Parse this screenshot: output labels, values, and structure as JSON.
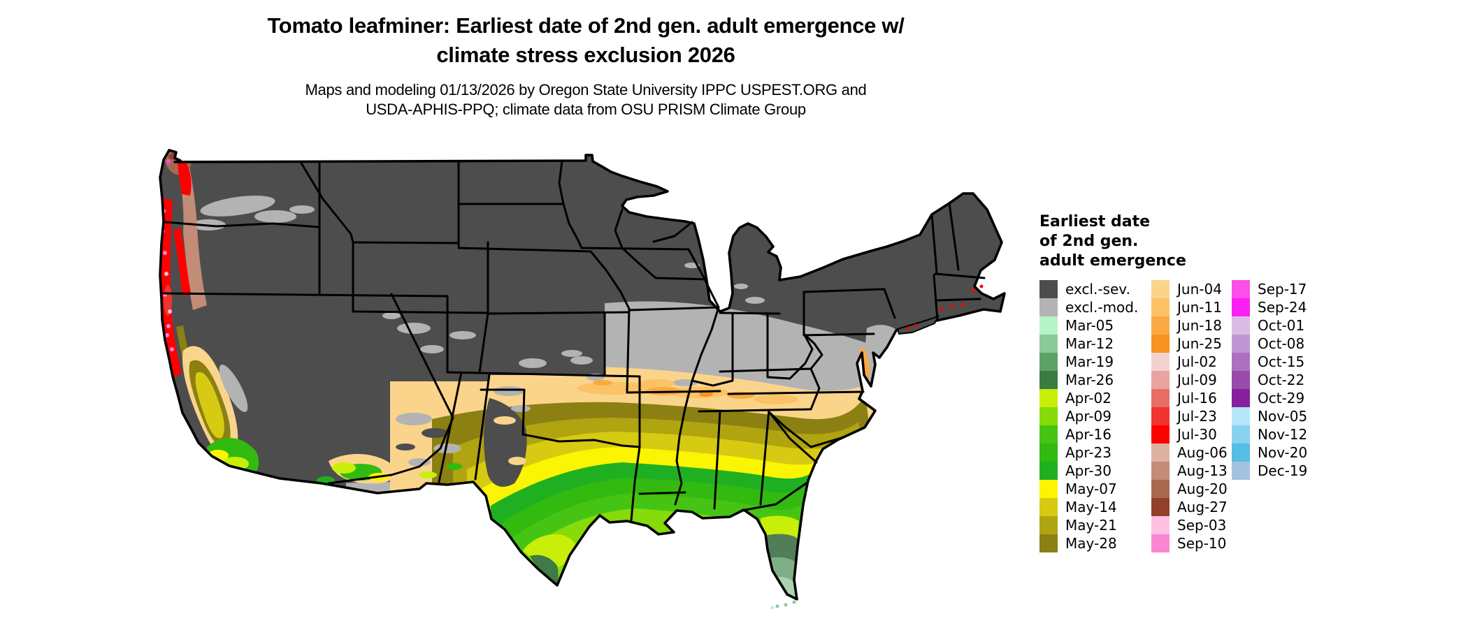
{
  "header": {
    "title_line1": "Tomato leafminer: Earliest date of 2nd gen. adult emergence w/",
    "title_line2": "climate stress exclusion 2026",
    "subtitle_line1": "Maps and modeling 01/13/2026 by Oregon State University IPPC USPEST.ORG and",
    "subtitle_line2": "USDA-APHIS-PPQ; climate data from OSU PRISM Climate Group"
  },
  "legend": {
    "title_lines": [
      "Earliest date",
      "of 2nd gen.",
      "adult emergence"
    ],
    "columns": [
      [
        {
          "label": "excl.-sev.",
          "color": "#4d4d4d"
        },
        {
          "label": "excl.-mod.",
          "color": "#b3b3b3"
        },
        {
          "label": "Mar-05",
          "color": "#b7f3c9"
        },
        {
          "label": "Mar-12",
          "color": "#8cc998"
        },
        {
          "label": "Mar-19",
          "color": "#5ba266"
        },
        {
          "label": "Mar-26",
          "color": "#3b7c42"
        },
        {
          "label": "Apr-02",
          "color": "#c8ef09"
        },
        {
          "label": "Apr-09",
          "color": "#86db09"
        },
        {
          "label": "Apr-16",
          "color": "#46c414"
        },
        {
          "label": "Apr-23",
          "color": "#32ba10"
        },
        {
          "label": "Apr-30",
          "color": "#1fb022"
        },
        {
          "label": "May-07",
          "color": "#fbf402"
        },
        {
          "label": "May-14",
          "color": "#d7ca12"
        },
        {
          "label": "May-21",
          "color": "#b0a411"
        },
        {
          "label": "May-28",
          "color": "#8b8011"
        }
      ],
      [
        {
          "label": "Jun-04",
          "color": "#fbd48c"
        },
        {
          "label": "Jun-11",
          "color": "#fcc266"
        },
        {
          "label": "Jun-18",
          "color": "#fba943"
        },
        {
          "label": "Jun-25",
          "color": "#f89220"
        },
        {
          "label": "Jul-02",
          "color": "#f2d2cf"
        },
        {
          "label": "Jul-09",
          "color": "#eba3a0"
        },
        {
          "label": "Jul-16",
          "color": "#e96d66"
        },
        {
          "label": "Jul-23",
          "color": "#f1342f"
        },
        {
          "label": "Jul-30",
          "color": "#fd0000"
        },
        {
          "label": "Aug-06",
          "color": "#dcb1a1"
        },
        {
          "label": "Aug-13",
          "color": "#c28c76"
        },
        {
          "label": "Aug-20",
          "color": "#a96950"
        },
        {
          "label": "Aug-27",
          "color": "#93402b"
        },
        {
          "label": "Sep-03",
          "color": "#fcc1e3"
        },
        {
          "label": "Sep-10",
          "color": "#fc85d0"
        }
      ],
      [
        {
          "label": "Sep-17",
          "color": "#fc4ee9"
        },
        {
          "label": "Sep-24",
          "color": "#fc1ff4"
        },
        {
          "label": "Oct-01",
          "color": "#d9bce5"
        },
        {
          "label": "Oct-08",
          "color": "#c197d3"
        },
        {
          "label": "Oct-15",
          "color": "#ad70c0"
        },
        {
          "label": "Oct-22",
          "color": "#9a49ac"
        },
        {
          "label": "Oct-29",
          "color": "#86209f"
        },
        {
          "label": "Nov-05",
          "color": "#b5e6fa"
        },
        {
          "label": "Nov-12",
          "color": "#87d2f0"
        },
        {
          "label": "Nov-20",
          "color": "#55bee5"
        },
        {
          "label": "Dec-19",
          "color": "#a2c2e0"
        }
      ]
    ]
  },
  "map": {
    "region": "Contiguous United States",
    "excluded_severe_color": "#4d4d4d",
    "excluded_moderate_color": "#b3b3b3",
    "state_border_color": "#000000",
    "water_color": "#ffffff"
  }
}
